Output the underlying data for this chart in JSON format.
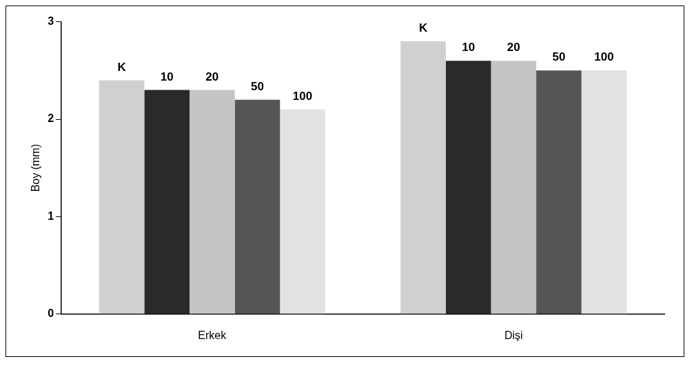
{
  "chart_data": {
    "type": "bar",
    "ylabel": "Boy (mm)",
    "categories": [
      "Erkek",
      "Dişi"
    ],
    "series": [
      {
        "name": "K",
        "color": "#d0d0d0",
        "values": [
          2.4,
          2.8
        ]
      },
      {
        "name": "10",
        "color": "#2a2a2a",
        "values": [
          2.3,
          2.6
        ]
      },
      {
        "name": "20",
        "color": "#c4c4c4",
        "values": [
          2.3,
          2.6
        ]
      },
      {
        "name": "50",
        "color": "#555555",
        "values": [
          2.2,
          2.5
        ]
      },
      {
        "name": "100",
        "color": "#e2e2e2",
        "values": [
          2.1,
          2.5
        ]
      }
    ],
    "ylim": [
      0,
      3
    ],
    "yticks": [
      0,
      1,
      2,
      3
    ],
    "grid": false,
    "legend": false
  }
}
